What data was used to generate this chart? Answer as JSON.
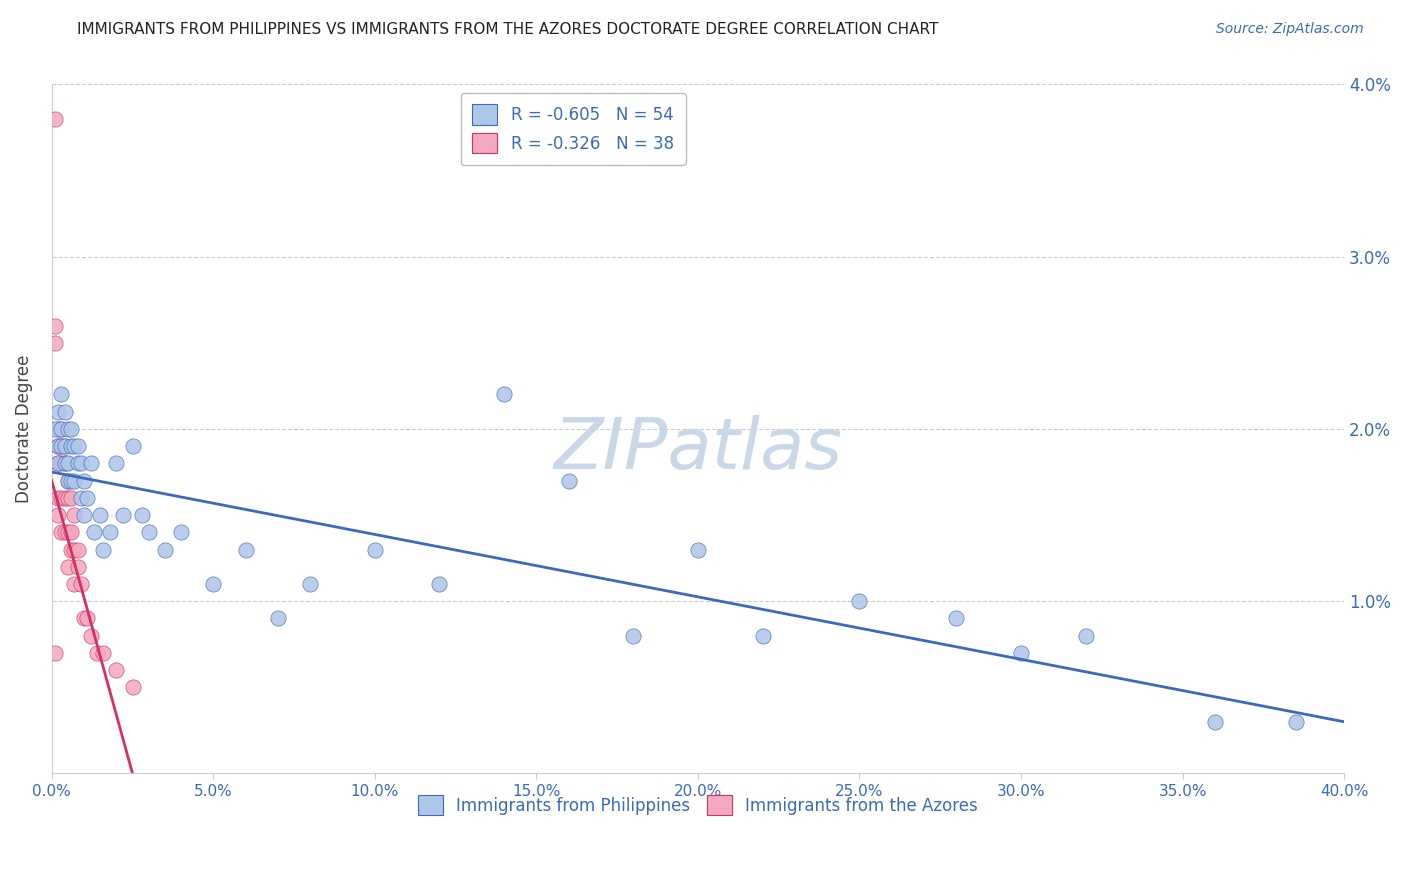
{
  "title": "IMMIGRANTS FROM PHILIPPINES VS IMMIGRANTS FROM THE AZORES DOCTORATE DEGREE CORRELATION CHART",
  "source": "Source: ZipAtlas.com",
  "ylabel": "Doctorate Degree",
  "xlim": [
    0,
    0.4
  ],
  "ylim": [
    0,
    0.04
  ],
  "xticks": [
    0.0,
    0.05,
    0.1,
    0.15,
    0.2,
    0.25,
    0.3,
    0.35,
    0.4
  ],
  "yticks": [
    0.0,
    0.01,
    0.02,
    0.03,
    0.04
  ],
  "ytick_labels_right": [
    "",
    "1.0%",
    "2.0%",
    "3.0%",
    "4.0%"
  ],
  "xtick_labels": [
    "0.0%",
    "5.0%",
    "10.0%",
    "15.0%",
    "20.0%",
    "25.0%",
    "30.0%",
    "35.0%",
    "40.0%"
  ],
  "legend_entries": [
    {
      "label": "R = -0.605   N = 54"
    },
    {
      "label": "R = -0.326   N = 38"
    }
  ],
  "legend_bottom": [
    {
      "label": "Immigrants from Philippines"
    },
    {
      "label": "Immigrants from the Azores"
    }
  ],
  "philippines_color": "#aec6e8",
  "azores_color": "#f4a8c0",
  "philippines_line_color": "#3a6abf",
  "azores_line_color": "#d43060",
  "background_color": "#ffffff",
  "grid_color": "#cccccc",
  "title_color": "#222222",
  "axis_label_color": "#3a6abf",
  "ylabel_color": "#444444",
  "philippines_x": [
    0.001,
    0.002,
    0.002,
    0.002,
    0.003,
    0.003,
    0.003,
    0.004,
    0.004,
    0.004,
    0.005,
    0.005,
    0.005,
    0.006,
    0.006,
    0.006,
    0.007,
    0.007,
    0.008,
    0.008,
    0.009,
    0.009,
    0.01,
    0.01,
    0.011,
    0.012,
    0.013,
    0.015,
    0.016,
    0.018,
    0.02,
    0.022,
    0.025,
    0.028,
    0.03,
    0.035,
    0.04,
    0.05,
    0.06,
    0.07,
    0.08,
    0.1,
    0.12,
    0.14,
    0.16,
    0.18,
    0.2,
    0.22,
    0.25,
    0.28,
    0.3,
    0.32,
    0.36,
    0.385
  ],
  "philippines_y": [
    0.02,
    0.021,
    0.019,
    0.018,
    0.022,
    0.02,
    0.019,
    0.021,
    0.019,
    0.018,
    0.02,
    0.018,
    0.017,
    0.02,
    0.019,
    0.017,
    0.019,
    0.017,
    0.019,
    0.018,
    0.018,
    0.016,
    0.017,
    0.015,
    0.016,
    0.018,
    0.014,
    0.015,
    0.013,
    0.014,
    0.018,
    0.015,
    0.019,
    0.015,
    0.014,
    0.013,
    0.014,
    0.011,
    0.013,
    0.009,
    0.011,
    0.013,
    0.011,
    0.022,
    0.017,
    0.008,
    0.013,
    0.008,
    0.01,
    0.009,
    0.007,
    0.008,
    0.003,
    0.003
  ],
  "azores_x": [
    0.001,
    0.001,
    0.001,
    0.001,
    0.002,
    0.002,
    0.002,
    0.002,
    0.002,
    0.003,
    0.003,
    0.003,
    0.003,
    0.003,
    0.004,
    0.004,
    0.004,
    0.004,
    0.005,
    0.005,
    0.005,
    0.005,
    0.006,
    0.006,
    0.006,
    0.007,
    0.007,
    0.007,
    0.008,
    0.008,
    0.009,
    0.01,
    0.011,
    0.012,
    0.014,
    0.016,
    0.02,
    0.025
  ],
  "azores_y": [
    0.038,
    0.026,
    0.025,
    0.007,
    0.02,
    0.019,
    0.018,
    0.016,
    0.015,
    0.02,
    0.019,
    0.018,
    0.016,
    0.014,
    0.019,
    0.018,
    0.016,
    0.014,
    0.017,
    0.016,
    0.014,
    0.012,
    0.016,
    0.014,
    0.013,
    0.015,
    0.013,
    0.011,
    0.013,
    0.012,
    0.011,
    0.009,
    0.009,
    0.008,
    0.007,
    0.007,
    0.006,
    0.005
  ],
  "phil_line_x0": 0.0,
  "phil_line_x1": 0.4,
  "phil_line_y0": 0.0175,
  "phil_line_y1": 0.003,
  "azores_line_x0": 0.0,
  "azores_line_x1": 0.025,
  "azores_line_y0": 0.017,
  "azores_line_y1": 0.0,
  "watermark": "ZIPatlas",
  "watermark_color": "#c8d8e8",
  "scatter_size": 120,
  "scatter_alpha": 0.85
}
